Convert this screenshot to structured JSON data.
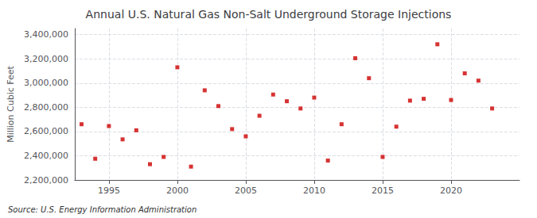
{
  "chart_data": {
    "type": "scatter",
    "title": "Annual U.S. Natural Gas Non-Salt Underground Storage Injections",
    "ylabel": "Million Cubic Feet",
    "source": "Source: U.S. Energy Information Administration",
    "color": "#cc0000",
    "marker": "square",
    "grid": true,
    "x": [
      1993,
      1994,
      1995,
      1996,
      1997,
      1998,
      1999,
      2000,
      2001,
      2002,
      2003,
      2004,
      2005,
      2006,
      2007,
      2008,
      2009,
      2010,
      2011,
      2012,
      2013,
      2014,
      2015,
      2016,
      2017,
      2018,
      2019,
      2020,
      2021,
      2022,
      2023
    ],
    "values": [
      2660000,
      2375000,
      2645000,
      2535000,
      2610000,
      2330000,
      2390000,
      3130000,
      2310000,
      2940000,
      2810000,
      2620000,
      2560000,
      2730000,
      2905000,
      2850000,
      2790000,
      2880000,
      2360000,
      2660000,
      3205000,
      3040000,
      2390000,
      2640000,
      2855000,
      2870000,
      3320000,
      2860000,
      3080000,
      3020000,
      2790000
    ],
    "xlim": [
      1992.5,
      2025
    ],
    "xticks": [
      1995,
      2000,
      2005,
      2010,
      2015,
      2020
    ],
    "ylim": [
      2200000,
      3450000
    ],
    "yticks": [
      {
        "value": 2200000,
        "label": "2,200,000"
      },
      {
        "value": 2400000,
        "label": "2,400,000"
      },
      {
        "value": 2600000,
        "label": "2,600,000"
      },
      {
        "value": 2800000,
        "label": "2,800,000"
      },
      {
        "value": 3000000,
        "label": "3,000,000"
      },
      {
        "value": 3200000,
        "label": "3,200,000"
      },
      {
        "value": 3400000,
        "label": "3,400,000"
      }
    ]
  }
}
